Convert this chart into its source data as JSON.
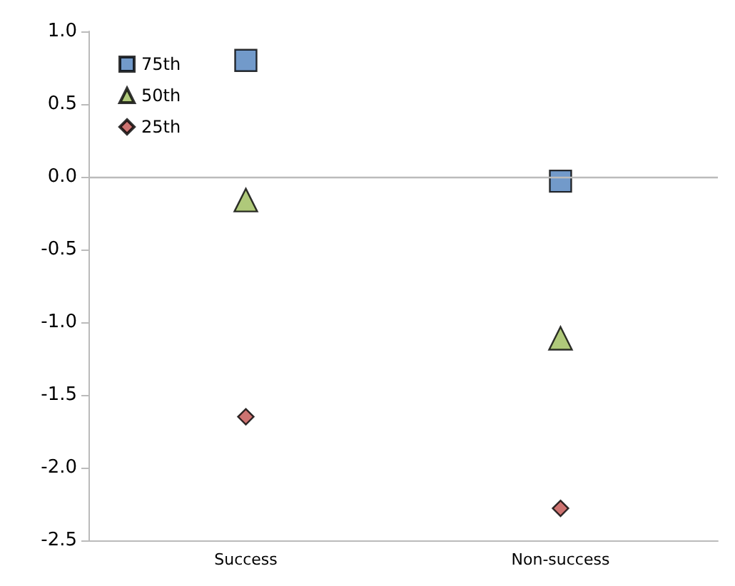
{
  "chart_data": {
    "type": "scatter",
    "categories": [
      "Success",
      "Non-success"
    ],
    "series": [
      {
        "name": "75th",
        "color": "#4f81bd",
        "marker": "square",
        "values": [
          0.8,
          -0.03
        ]
      },
      {
        "name": "50th",
        "color": "#9bbb59",
        "marker": "triangle",
        "values": [
          -0.16,
          -1.11
        ]
      },
      {
        "name": "25th",
        "color": "#c0504d",
        "marker": "diamond",
        "values": [
          -1.65,
          -2.28
        ]
      }
    ],
    "ylim": [
      -2.5,
      1.0
    ],
    "yticks": [
      -2.5,
      {
        "value": -2,
        "label": "-2.0"
      },
      -1.5,
      {
        "value": -1,
        "label": "-1.0"
      },
      -0.5,
      {
        "value": 0,
        "label": "0.0"
      },
      0.5,
      {
        "value": 1,
        "label": "1.0"
      }
    ],
    "grid": false,
    "legend": "top left",
    "ref_lines": [
      {
        "axis": "y",
        "value": 0,
        "color": "#bbbbbb"
      }
    ]
  }
}
